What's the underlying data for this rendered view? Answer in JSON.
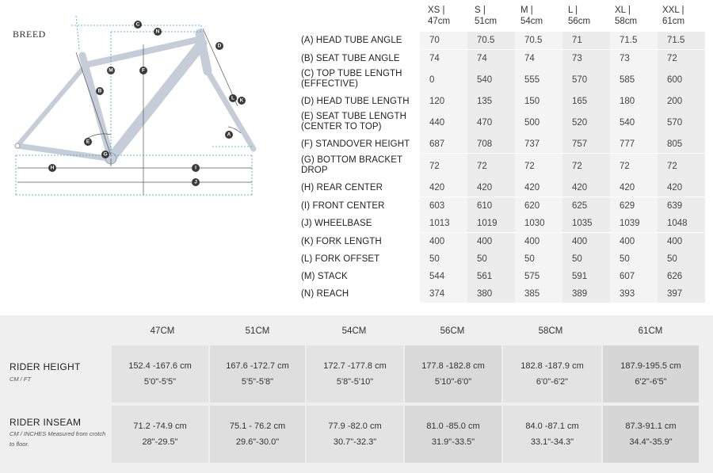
{
  "brand": "BREED",
  "diagram": {
    "badges": [
      "C",
      "N",
      "D",
      "M",
      "F",
      "B",
      "L",
      "K",
      "E",
      "A",
      "G",
      "H",
      "I",
      "J"
    ]
  },
  "geometry": {
    "sizes": [
      {
        "label": "XS |",
        "cm": "47cm"
      },
      {
        "label": "S |",
        "cm": "51cm"
      },
      {
        "label": "M |",
        "cm": "54cm"
      },
      {
        "label": "L |",
        "cm": "56cm"
      },
      {
        "label": "XL |",
        "cm": "58cm"
      },
      {
        "label": "XXL |",
        "cm": "61cm"
      }
    ],
    "rows": [
      {
        "label": "(A) HEAD TUBE ANGLE",
        "values": [
          "70",
          "70.5",
          "70.5",
          "71",
          "71.5",
          "71.5"
        ]
      },
      {
        "label": "(B) SEAT TUBE ANGLE",
        "values": [
          "74",
          "74",
          "74",
          "73",
          "73",
          "72"
        ]
      },
      {
        "label": "(C) TOP TUBE LENGTH (EFFECTIVE)",
        "values": [
          "0",
          "540",
          "555",
          "570",
          "585",
          "600"
        ]
      },
      {
        "label": "(D) HEAD TUBE LENGTH",
        "values": [
          "120",
          "135",
          "150",
          "165",
          "180",
          "200"
        ]
      },
      {
        "label": "(E) SEAT TUBE LENGTH (CENTER TO TOP)",
        "values": [
          "440",
          "470",
          "500",
          "520",
          "540",
          "570"
        ]
      },
      {
        "label": "(F) STANDOVER HEIGHT",
        "values": [
          "687",
          "708",
          "737",
          "757",
          "777",
          "805"
        ]
      },
      {
        "label": "(G) BOTTOM BRACKET DROP",
        "values": [
          "72",
          "72",
          "72",
          "72",
          "72",
          "72"
        ]
      },
      {
        "label": "(H) REAR CENTER",
        "values": [
          "420",
          "420",
          "420",
          "420",
          "420",
          "420"
        ]
      },
      {
        "label": "(I) FRONT CENTER",
        "values": [
          "603",
          "610",
          "620",
          "625",
          "629",
          "639"
        ]
      },
      {
        "label": "(J) WHEELBASE",
        "values": [
          "1013",
          "1019",
          "1030",
          "1035",
          "1039",
          "1048"
        ]
      },
      {
        "label": "(K) FORK LENGTH",
        "values": [
          "400",
          "400",
          "400",
          "400",
          "400",
          "400"
        ]
      },
      {
        "label": "(L) FORK OFFSET",
        "values": [
          "50",
          "50",
          "50",
          "50",
          "50",
          "50"
        ]
      },
      {
        "label": "(M) STACK",
        "values": [
          "544",
          "561",
          "575",
          "591",
          "607",
          "626"
        ]
      },
      {
        "label": "(N) REACH",
        "values": [
          "374",
          "380",
          "385",
          "389",
          "393",
          "397"
        ]
      }
    ]
  },
  "fit": {
    "columns": [
      "47CM",
      "51CM",
      "54CM",
      "56CM",
      "58CM",
      "61CM"
    ],
    "rows": [
      {
        "title": "RIDER HEIGHT",
        "subtitle": "CM / FT",
        "cells": [
          {
            "cm": "152.4 -167.6 cm",
            "imperial": "5'0\"-5'5\""
          },
          {
            "cm": "167.6 -172.7 cm",
            "imperial": "5'5\"-5'8\""
          },
          {
            "cm": "172.7 -177.8 cm",
            "imperial": "5'8\"-5'10\""
          },
          {
            "cm": "177.8 -182.8 cm",
            "imperial": "5'10\"-6'0\""
          },
          {
            "cm": "182.8 -187.9 cm",
            "imperial": "6'0\"-6'2\""
          },
          {
            "cm": "187.9-195.5 cm",
            "imperial": "6'2\"-6'5\""
          }
        ]
      },
      {
        "title": "RIDER INSEAM",
        "subtitle": "CM / INCHES Measured from crotch to floor.",
        "cells": [
          {
            "cm": "71.2 -74.9 cm",
            "imperial": "28\"-29.5\""
          },
          {
            "cm": "75.1 - 76.2 cm",
            "imperial": "29.6\"-30.0\""
          },
          {
            "cm": "77.9 -82.0 cm",
            "imperial": "30.7\"-32.3\""
          },
          {
            "cm": "81.0 -85.0 cm",
            "imperial": "31.9\"-33.5\""
          },
          {
            "cm": "84.0 -87.1 cm",
            "imperial": "33.1\"-34.3\""
          },
          {
            "cm": "87.3-91.1 cm",
            "imperial": "34.4\"-35.9\""
          }
        ]
      }
    ]
  },
  "colors": {
    "frame": "#c5cdd8",
    "dimension_line": "#3aa8c8",
    "badge": "#3a3a3a",
    "shade_light": "#f4f4f4",
    "shade_dark": "#ececec",
    "fit_background": "#efefef"
  }
}
